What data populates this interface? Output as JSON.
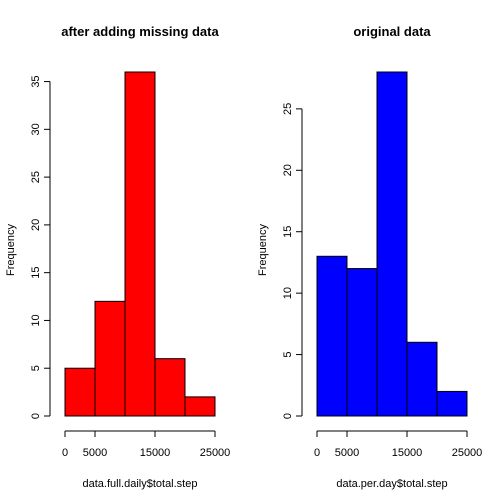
{
  "chart_data": [
    {
      "type": "bar",
      "title": "after adding missing data",
      "xlabel": "data.full.daily$total.step",
      "ylabel": "Frequency",
      "bins": [
        [
          0,
          5000
        ],
        [
          5000,
          10000
        ],
        [
          10000,
          15000
        ],
        [
          15000,
          20000
        ],
        [
          20000,
          25000
        ]
      ],
      "values": [
        5,
        12,
        36,
        6,
        2
      ],
      "color": "#ff0000",
      "xlim": [
        0,
        25000
      ],
      "ylim": [
        0,
        36
      ],
      "xticks": [
        0,
        5000,
        15000,
        25000
      ],
      "xtick_labels": [
        "0",
        "5000",
        "15000",
        "25000"
      ],
      "yticks": [
        0,
        5,
        10,
        15,
        20,
        25,
        30,
        35
      ],
      "ytick_labels": [
        "0",
        "5",
        "10",
        "15",
        "20",
        "25",
        "30",
        "35"
      ]
    },
    {
      "type": "bar",
      "title": "original data",
      "xlabel": "data.per.day$total.step",
      "ylabel": "Frequency",
      "bins": [
        [
          0,
          5000
        ],
        [
          5000,
          10000
        ],
        [
          10000,
          15000
        ],
        [
          15000,
          20000
        ],
        [
          20000,
          25000
        ]
      ],
      "values": [
        13,
        12,
        28,
        6,
        2
      ],
      "color": "#0000ff",
      "xlim": [
        0,
        25000
      ],
      "ylim": [
        0,
        28
      ],
      "xticks": [
        0,
        5000,
        15000,
        25000
      ],
      "xtick_labels": [
        "0",
        "5000",
        "15000",
        "25000"
      ],
      "yticks": [
        0,
        5,
        10,
        15,
        20,
        25
      ],
      "ytick_labels": [
        "0",
        "5",
        "10",
        "15",
        "20",
        "25"
      ]
    }
  ]
}
